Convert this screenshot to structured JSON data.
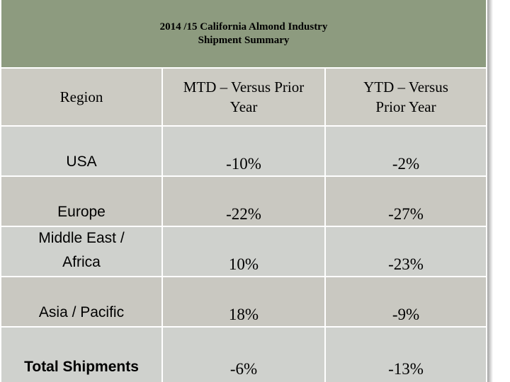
{
  "title": {
    "line1": "2014 /15 California Almond Industry",
    "line2": "Shipment  Summary"
  },
  "headers": {
    "region": "Region",
    "mtd_line1": "MTD – Versus Prior",
    "mtd_line2": "Year",
    "ytd_line1": "YTD – Versus",
    "ytd_line2": "Prior Year"
  },
  "rows": [
    {
      "region": "USA",
      "mtd": "-10%",
      "ytd": "-2%"
    },
    {
      "region": "Europe",
      "mtd": "-22%",
      "ytd": "-27%"
    },
    {
      "region_line1": "Middle East /",
      "region_line2": "Africa",
      "mtd": "10%",
      "ytd": "-23%"
    },
    {
      "region": "Asia / Pacific",
      "mtd": "18%",
      "ytd": "-9%"
    },
    {
      "region": "Total Shipments",
      "mtd": "-6%",
      "ytd": "-13%"
    }
  ],
  "colors": {
    "title_bg": "#8d9b7f",
    "header_bg": "#cccbc3",
    "row_light": "#cfd1cd",
    "row_dark": "#c9c8c1"
  }
}
